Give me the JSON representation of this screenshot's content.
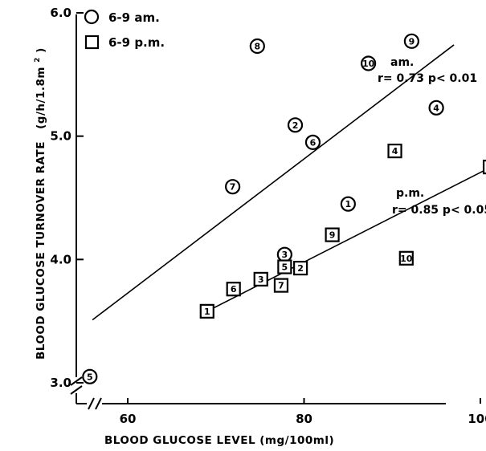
{
  "chart_data": {
    "type": "scatter",
    "xlabel": "BLOOD GLUCOSE LEVEL (mg/100ml)",
    "ylabel": "BLOOD GLUCOSE TURNOVER RATE",
    "ylabel_unit_prefix": "(g/h/1.8m",
    "ylabel_unit_sup": "2",
    "ylabel_unit_suffix": ")",
    "xlim": [
      52,
      101
    ],
    "ylim": [
      2.9,
      6.0
    ],
    "xticks": [
      60,
      80,
      100
    ],
    "xtick_labels": [
      "60",
      "80",
      "100"
    ],
    "yticks": [
      3.0,
      4.0,
      5.0,
      6.0
    ],
    "ytick_labels": [
      "3.0",
      "4.0",
      "5.0",
      "6.0"
    ],
    "axis_breaks": true,
    "grid": false,
    "legend_position": "top-left",
    "legend": [
      {
        "marker": "circle",
        "label": "6-9 am."
      },
      {
        "marker": "square",
        "label": "6-9 p.m."
      }
    ],
    "series": [
      {
        "marker": "circle",
        "points": [
          {
            "id": "1",
            "x": 85.0,
            "y": 4.45
          },
          {
            "id": "2",
            "x": 79.0,
            "y": 5.09
          },
          {
            "id": "3",
            "x": 77.8,
            "y": 4.04
          },
          {
            "id": "4",
            "x": 95.0,
            "y": 5.23
          },
          {
            "id": "5",
            "x": 55.7,
            "y": 3.05
          },
          {
            "id": "6",
            "x": 81.0,
            "y": 4.95
          },
          {
            "id": "7",
            "x": 71.9,
            "y": 4.59
          },
          {
            "id": "8",
            "x": 74.7,
            "y": 5.73
          },
          {
            "id": "9",
            "x": 92.2,
            "y": 5.77
          },
          {
            "id": "10",
            "x": 87.3,
            "y": 5.59
          }
        ],
        "regression": {
          "x": [
            56.0,
            97.0
          ],
          "y": [
            3.51,
            5.74
          ]
        },
        "annotation": [
          "am.",
          "r= 0.73   p< 0.01"
        ]
      },
      {
        "marker": "square",
        "points": [
          {
            "id": "1",
            "x": 69.0,
            "y": 3.58
          },
          {
            "id": "2",
            "x": 79.6,
            "y": 3.93
          },
          {
            "id": "3",
            "x": 75.1,
            "y": 3.84
          },
          {
            "id": "4",
            "x": 90.3,
            "y": 4.88
          },
          {
            "id": "5",
            "x": 77.8,
            "y": 3.94
          },
          {
            "id": "6",
            "x": 72.0,
            "y": 3.76
          },
          {
            "id": "7",
            "x": 77.4,
            "y": 3.79
          },
          {
            "id": "8",
            "x": 101.1,
            "y": 4.75
          },
          {
            "id": "9",
            "x": 83.2,
            "y": 4.2
          },
          {
            "id": "10",
            "x": 91.6,
            "y": 4.01
          }
        ],
        "regression": {
          "x": [
            69.0,
            101.5
          ],
          "y": [
            3.58,
            4.76
          ]
        },
        "annotation": [
          "p.m.",
          "r= 0.85   p< 0.05"
        ]
      }
    ]
  }
}
